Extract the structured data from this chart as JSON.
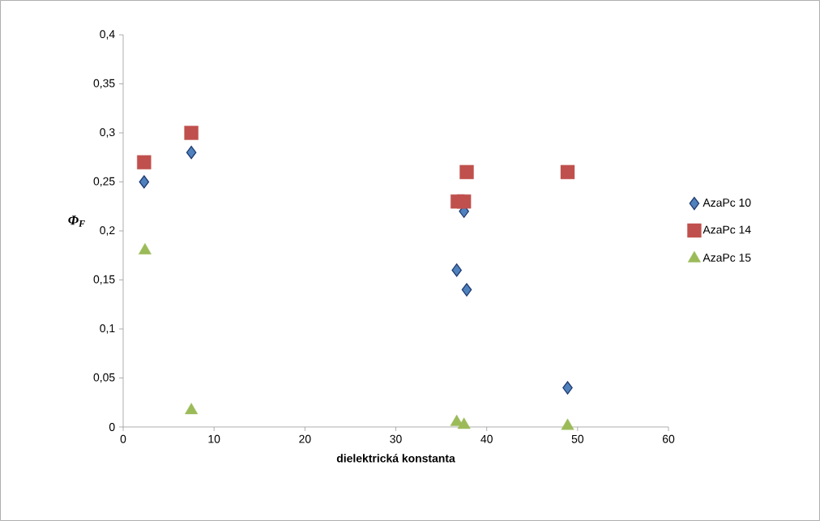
{
  "chart_data": {
    "type": "scatter",
    "xlabel": "dielektrická konstanta",
    "ylabel": "Φ$_{F}$",
    "xlim": [
      0,
      60
    ],
    "xticks": [
      0,
      10,
      20,
      30,
      40,
      50,
      60
    ],
    "ylim": [
      0,
      0.4
    ],
    "yticks": [
      0,
      {
        "value": 0.05,
        "label": "0,05"
      },
      {
        "value": 0.1,
        "label": "0,1"
      },
      {
        "value": 0.15,
        "label": "0,15"
      },
      {
        "value": 0.2,
        "label": "0,2"
      },
      {
        "value": 0.25,
        "label": "0,25"
      },
      {
        "value": 0.3,
        "label": "0,3"
      },
      {
        "value": 0.35,
        "label": "0,35"
      },
      {
        "value": 0.4,
        "label": "0,4"
      }
    ],
    "grid": false,
    "legend": "right",
    "series": [
      {
        "name": "AzaPc 10",
        "color": "#4f81bd",
        "marker": "diamond",
        "x": [
          2.3,
          7.5,
          36.7,
          37.5,
          37.8,
          48.9
        ],
        "values": [
          0.25,
          0.28,
          0.16,
          0.22,
          0.14,
          0.04
        ]
      },
      {
        "name": "AzaPc 14",
        "color": "#c0504d",
        "marker": "square",
        "x": [
          2.3,
          7.5,
          36.8,
          37.5,
          37.8,
          48.9
        ],
        "values": [
          0.27,
          0.3,
          0.23,
          0.23,
          0.26,
          0.26
        ]
      },
      {
        "name": "AzaPc 15",
        "color": "#9bbb59",
        "marker": "triangle",
        "x": [
          2.4,
          7.5,
          36.7,
          37.5,
          48.9
        ],
        "values": [
          0.18,
          0.017,
          0.005,
          0.002,
          0.001
        ]
      }
    ]
  }
}
